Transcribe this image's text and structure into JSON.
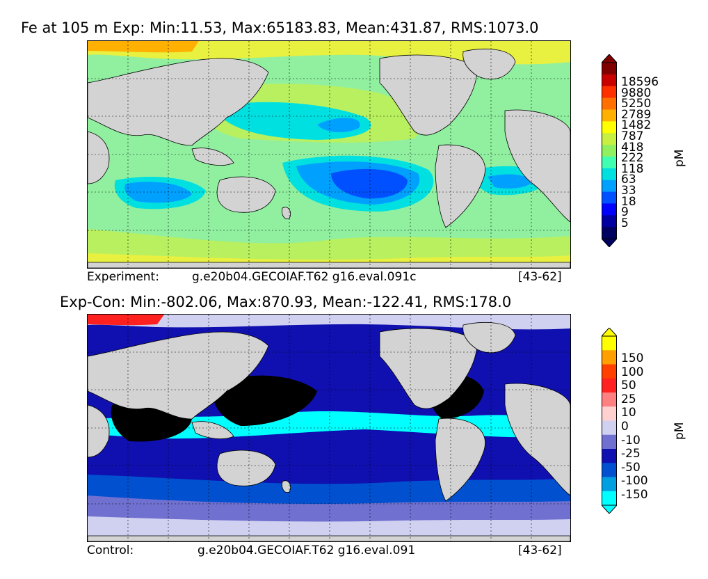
{
  "top": {
    "title": "Fe at 105 m Exp: Min:11.53, Max:65183.83, Mean:431.87, RMS:1073.0",
    "caption_left": "Experiment:",
    "caption_case": "g.e20b04.GECOIAF.T62 g16.eval.091c",
    "caption_years": "[43-62]",
    "unit": "pM",
    "colorbar_labels": [
      "18596",
      "9880",
      "5250",
      "2789",
      "1482",
      "787",
      "418",
      "222",
      "118",
      "63",
      "33",
      "18",
      "9",
      "5"
    ],
    "colorbar_colors": [
      "#800000",
      "#c80000",
      "#ff3000",
      "#ff7000",
      "#ffb000",
      "#ffff00",
      "#c8f040",
      "#90f060",
      "#40ffb0",
      "#00e0e0",
      "#00a0ff",
      "#0050ff",
      "#0000ff",
      "#0000a0",
      "#000060"
    ]
  },
  "bottom": {
    "title": "Exp-Con: Min:-802.06, Max:870.93, Mean:-122.41, RMS:178.0",
    "caption_left": "Control:",
    "caption_case": "g.e20b04.GECOIAF.T62 g16.eval.091",
    "caption_years": "[43-62]",
    "unit": "pM",
    "colorbar_labels": [
      "150",
      "100",
      "50",
      "25",
      "10",
      "0",
      "-10",
      "-25",
      "-50",
      "-100",
      "-150"
    ],
    "colorbar_colors": [
      "#ffff00",
      "#ffa000",
      "#ff4000",
      "#ff2020",
      "#ff8080",
      "#ffd0d0",
      "#d0d0f0",
      "#7070d0",
      "#1010b0",
      "#0050d0",
      "#00a0e0",
      "#00ffff"
    ]
  }
}
